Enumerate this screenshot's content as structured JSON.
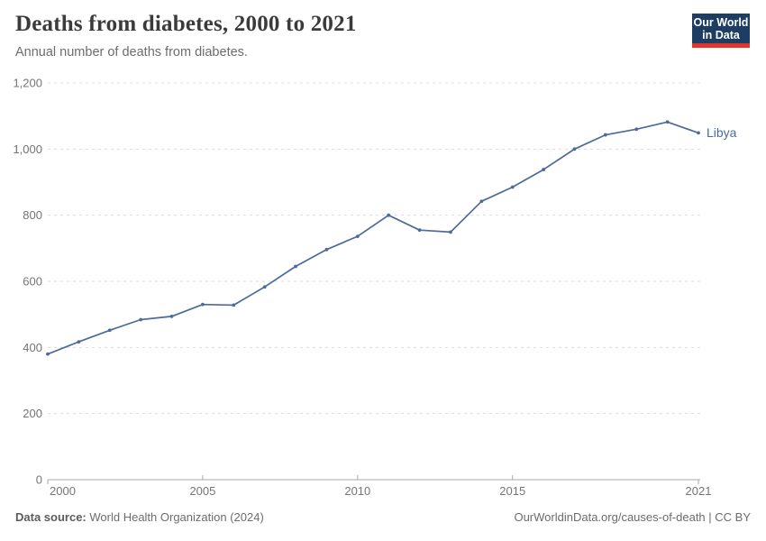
{
  "header": {
    "title": "Deaths from diabetes, 2000 to 2021",
    "subtitle": "Annual number of deaths from diabetes."
  },
  "logo": {
    "line1": "Our World",
    "line2": "in Data",
    "bg_color": "#1d3d63",
    "accent_color": "#e0352b",
    "text_color": "#ffffff"
  },
  "chart_data": {
    "type": "line",
    "title": "Deaths from diabetes, 2000 to 2021",
    "subtitle": "Annual number of deaths from diabetes.",
    "xlabel": "",
    "ylabel": "",
    "xlim": [
      2000,
      2021
    ],
    "ylim": [
      0,
      1200
    ],
    "grid": "horizontal-dashed",
    "legend_position": "end-of-line-label",
    "xticks": [
      2000,
      2005,
      2010,
      2015,
      2021
    ],
    "xtick_labels": [
      "2000",
      "2005",
      "2010",
      "2015",
      "2021"
    ],
    "yticks": [
      0,
      200,
      400,
      600,
      800,
      1000,
      1200
    ],
    "ytick_labels": [
      "0",
      "200",
      "400",
      "600",
      "800",
      "1,000",
      "1,200"
    ],
    "series": [
      {
        "name": "Libya",
        "color": "#4C6A9C",
        "x": [
          2000,
          2001,
          2002,
          2003,
          2004,
          2005,
          2006,
          2007,
          2008,
          2009,
          2010,
          2011,
          2012,
          2013,
          2014,
          2015,
          2016,
          2017,
          2018,
          2019,
          2020,
          2021
        ],
        "values": [
          380,
          417,
          452,
          484,
          494,
          530,
          528,
          583,
          645,
          696,
          736,
          800,
          755,
          749,
          842,
          885,
          938,
          1000,
          1043,
          1060,
          1082,
          1049
        ]
      }
    ]
  },
  "footer": {
    "source_label": "Data source:",
    "source_value": "World Health Organization (2024)",
    "link_text": "OurWorldinData.org/causes-of-death | CC BY"
  },
  "colors": {
    "line": "#4C6A9C",
    "grid": "#dcdcdc",
    "axis": "#a9a9a9",
    "tick_label": "#757575",
    "end_label": "#4C6A9C"
  }
}
